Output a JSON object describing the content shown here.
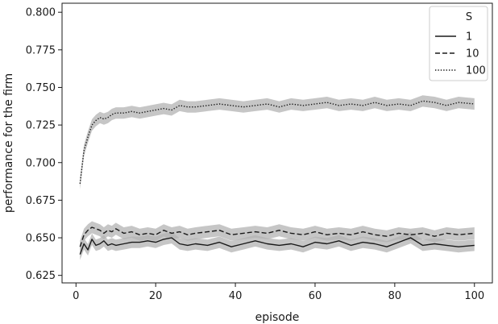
{
  "chart_data": {
    "type": "line",
    "xlabel": "episode",
    "ylabel": "performance for the firm",
    "xlim": [
      -3.5,
      104.5
    ],
    "ylim": [
      0.62,
      0.806
    ],
    "xticks": [
      0,
      20,
      40,
      60,
      80,
      100
    ],
    "yticks": [
      0.625,
      0.65,
      0.675,
      0.7,
      0.725,
      0.75,
      0.775,
      0.8
    ],
    "ytick_labels": [
      "0.625",
      "0.650",
      "0.675",
      "0.700",
      "0.725",
      "0.750",
      "0.775",
      "0.800"
    ],
    "grid": false,
    "legend": {
      "title": "S",
      "position": "top-right"
    },
    "band_color": "#b3b3b3",
    "line_color": "#1a1a1a",
    "series": [
      {
        "name": "1",
        "style": "solid",
        "ci_halfwidth": 0.0038,
        "x": [
          1,
          2,
          3,
          4,
          5,
          6,
          7,
          8,
          9,
          10,
          12,
          14,
          16,
          18,
          20,
          22,
          24,
          26,
          28,
          30,
          33,
          36,
          39,
          42,
          45,
          48,
          51,
          54,
          57,
          60,
          63,
          66,
          69,
          72,
          75,
          78,
          81,
          84,
          87,
          90,
          93,
          96,
          100
        ],
        "y": [
          0.639,
          0.646,
          0.642,
          0.649,
          0.645,
          0.646,
          0.648,
          0.645,
          0.646,
          0.645,
          0.646,
          0.647,
          0.647,
          0.648,
          0.647,
          0.649,
          0.65,
          0.646,
          0.645,
          0.646,
          0.645,
          0.647,
          0.644,
          0.646,
          0.648,
          0.646,
          0.645,
          0.646,
          0.644,
          0.647,
          0.646,
          0.648,
          0.645,
          0.647,
          0.646,
          0.644,
          0.647,
          0.65,
          0.645,
          0.646,
          0.645,
          0.644,
          0.645
        ]
      },
      {
        "name": "10",
        "style": "dashed",
        "ci_halfwidth": 0.004,
        "x": [
          1,
          2,
          3,
          4,
          5,
          6,
          7,
          8,
          9,
          10,
          12,
          14,
          16,
          18,
          20,
          22,
          24,
          26,
          28,
          30,
          33,
          36,
          39,
          42,
          45,
          48,
          51,
          54,
          57,
          60,
          63,
          66,
          69,
          72,
          75,
          78,
          81,
          84,
          87,
          90,
          93,
          96,
          100
        ],
        "y": [
          0.644,
          0.652,
          0.655,
          0.657,
          0.656,
          0.655,
          0.653,
          0.655,
          0.654,
          0.656,
          0.653,
          0.654,
          0.652,
          0.653,
          0.652,
          0.655,
          0.653,
          0.654,
          0.652,
          0.653,
          0.654,
          0.655,
          0.652,
          0.653,
          0.654,
          0.653,
          0.655,
          0.653,
          0.652,
          0.654,
          0.652,
          0.653,
          0.652,
          0.654,
          0.652,
          0.651,
          0.653,
          0.652,
          0.653,
          0.651,
          0.653,
          0.652,
          0.653
        ]
      },
      {
        "name": "100",
        "style": "dotted",
        "ci_halfwidth": 0.0038,
        "x": [
          1,
          2,
          3,
          4,
          5,
          6,
          7,
          8,
          9,
          10,
          12,
          14,
          16,
          18,
          20,
          22,
          24,
          26,
          28,
          30,
          33,
          36,
          39,
          42,
          45,
          48,
          51,
          54,
          57,
          60,
          63,
          66,
          69,
          72,
          75,
          78,
          81,
          84,
          87,
          90,
          93,
          96,
          100
        ],
        "y": [
          0.686,
          0.708,
          0.717,
          0.725,
          0.728,
          0.73,
          0.729,
          0.73,
          0.732,
          0.733,
          0.733,
          0.734,
          0.733,
          0.734,
          0.735,
          0.736,
          0.735,
          0.738,
          0.737,
          0.737,
          0.738,
          0.739,
          0.738,
          0.737,
          0.738,
          0.739,
          0.737,
          0.739,
          0.738,
          0.739,
          0.74,
          0.738,
          0.739,
          0.738,
          0.74,
          0.738,
          0.739,
          0.738,
          0.741,
          0.74,
          0.738,
          0.74,
          0.739
        ]
      }
    ]
  }
}
